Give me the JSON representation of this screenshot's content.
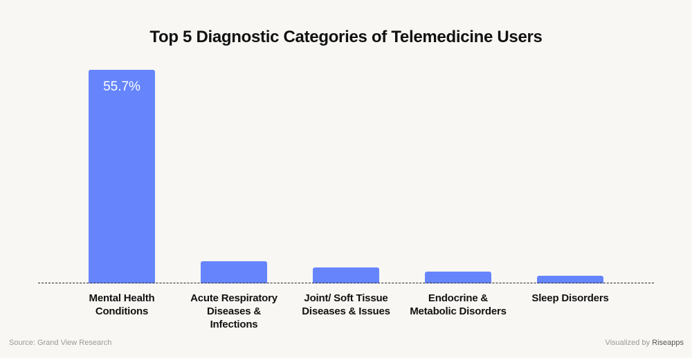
{
  "chart_data": {
    "type": "bar",
    "title": "Top 5 Diagnostic Categories of Telemedicine Users",
    "categories": [
      "Mental Health Conditions",
      "Acute Respiratory Diseases & Infections",
      "Joint/ Soft Tissue Diseases & Issues",
      "Endocrine & Metabolic Disorders",
      "Sleep Disorders"
    ],
    "values": [
      55.7,
      5.8,
      4.1,
      3.1,
      2.0
    ],
    "value_labels": [
      "55.7%",
      null,
      null,
      null,
      null
    ],
    "color": "#6685fd",
    "source": "Source: Grand View Research",
    "credit_prefix": "Visualized by",
    "credit_brand": "Riseapps"
  }
}
